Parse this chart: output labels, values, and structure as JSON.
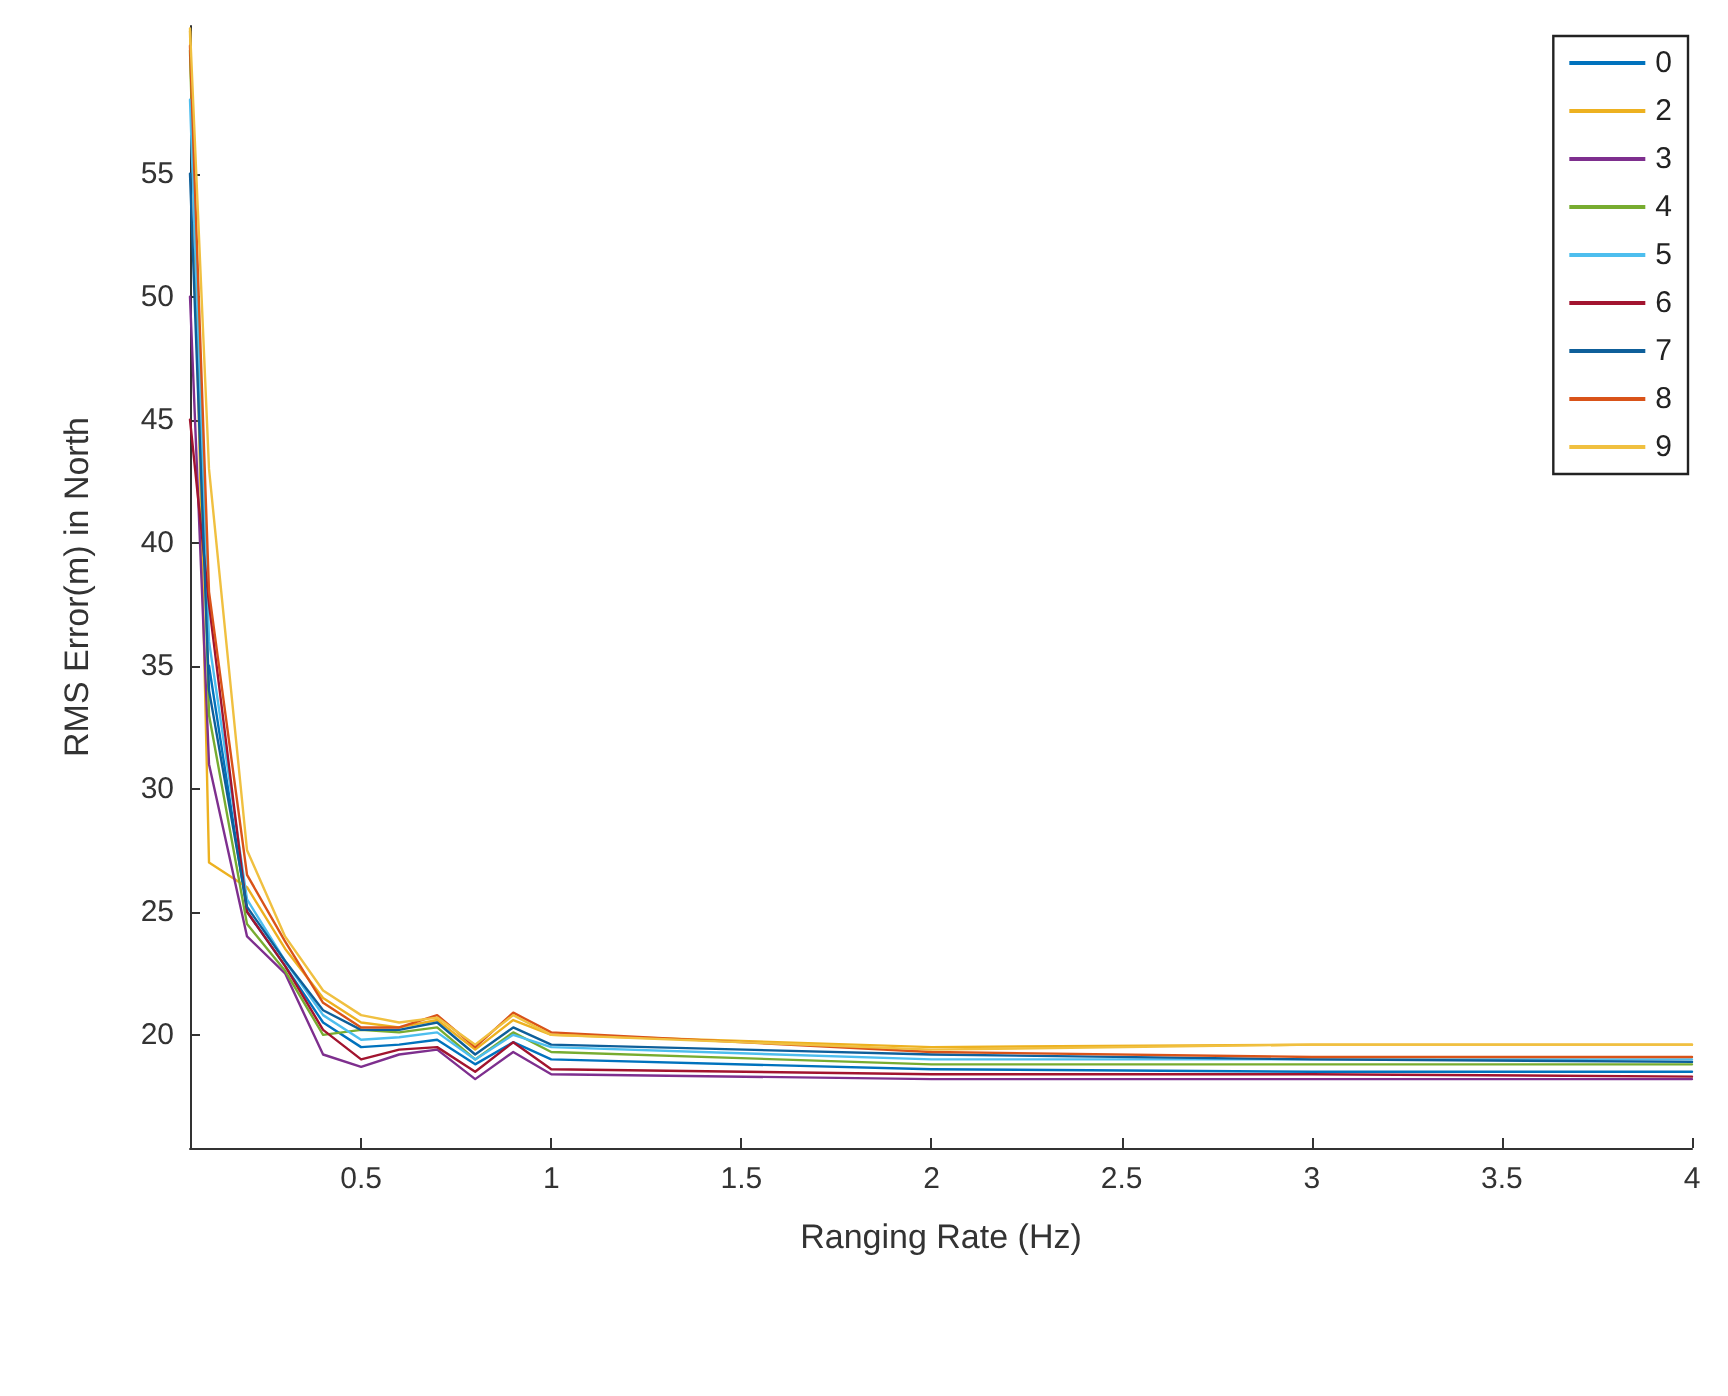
{
  "chart_data": {
    "type": "line",
    "xlabel": "Ranging Rate (Hz)",
    "ylabel": "RMS Error(m) in North",
    "x": [
      0.05,
      0.1,
      0.2,
      0.3,
      0.4,
      0.5,
      0.6,
      0.7,
      0.8,
      0.9,
      1,
      2,
      3,
      4
    ],
    "series": [
      {
        "name": "0",
        "color": "#0072bd",
        "values": [
          null,
          35,
          25,
          22.8,
          20.5,
          19.5,
          19.6,
          19.8,
          18.8,
          19.7,
          19,
          18.6,
          18.5,
          18.5
        ]
      },
      {
        "name": "2",
        "color": "#edb120",
        "values": [
          60.8,
          27,
          26,
          23.5,
          21.5,
          20.5,
          20.3,
          20.6,
          19.4,
          20.6,
          20,
          19.5,
          19.6,
          19.6
        ]
      },
      {
        "name": "3",
        "color": "#7e2f8e",
        "values": [
          50,
          31,
          24,
          22.5,
          19.2,
          18.7,
          19.2,
          19.4,
          18.2,
          19.3,
          18.4,
          18.2,
          18.2,
          18.2
        ]
      },
      {
        "name": "4",
        "color": "#77ac30",
        "values": [
          60,
          33,
          24.5,
          22.6,
          20,
          20.2,
          20.1,
          20.3,
          19,
          20.1,
          19.3,
          18.8,
          18.8,
          18.8
        ]
      },
      {
        "name": "5",
        "color": "#4dbeee",
        "values": [
          58,
          36,
          25.5,
          23,
          20.8,
          19.8,
          19.9,
          20.1,
          19,
          20,
          19.5,
          19,
          19,
          19
        ]
      },
      {
        "name": "6",
        "color": "#a2142f",
        "values": [
          45,
          37.5,
          25,
          22.8,
          20.2,
          19,
          19.4,
          19.5,
          18.5,
          19.7,
          18.6,
          18.4,
          18.4,
          18.3
        ]
      },
      {
        "name": "7",
        "color": "#0e5f9a",
        "values": [
          55,
          34,
          25.2,
          23,
          21,
          20.2,
          20.2,
          20.5,
          19.2,
          20.3,
          19.6,
          19.2,
          19,
          18.9
        ]
      },
      {
        "name": "8",
        "color": "#d95319",
        "values": [
          60.2,
          38,
          26.5,
          23.8,
          21.3,
          20.3,
          20.3,
          20.8,
          19.5,
          20.9,
          20.1,
          19.3,
          19.1,
          19.1
        ]
      },
      {
        "name": "9",
        "color": "#f0c040",
        "values": [
          60.9,
          43,
          27.5,
          24,
          21.8,
          20.8,
          20.5,
          20.7,
          19.6,
          20.8,
          20,
          19.4,
          19.6,
          19.6
        ]
      }
    ],
    "xlim": [
      0.05,
      4
    ],
    "xticks": [
      0.5,
      1,
      1.5,
      2,
      2.5,
      3,
      3.5,
      4
    ],
    "ylim": [
      15.4,
      61
    ],
    "yticks": [
      20,
      25,
      30,
      35,
      40,
      45,
      50,
      55
    ],
    "grid": false,
    "legend": "top right",
    "marker": "none",
    "line_style": "solid"
  }
}
